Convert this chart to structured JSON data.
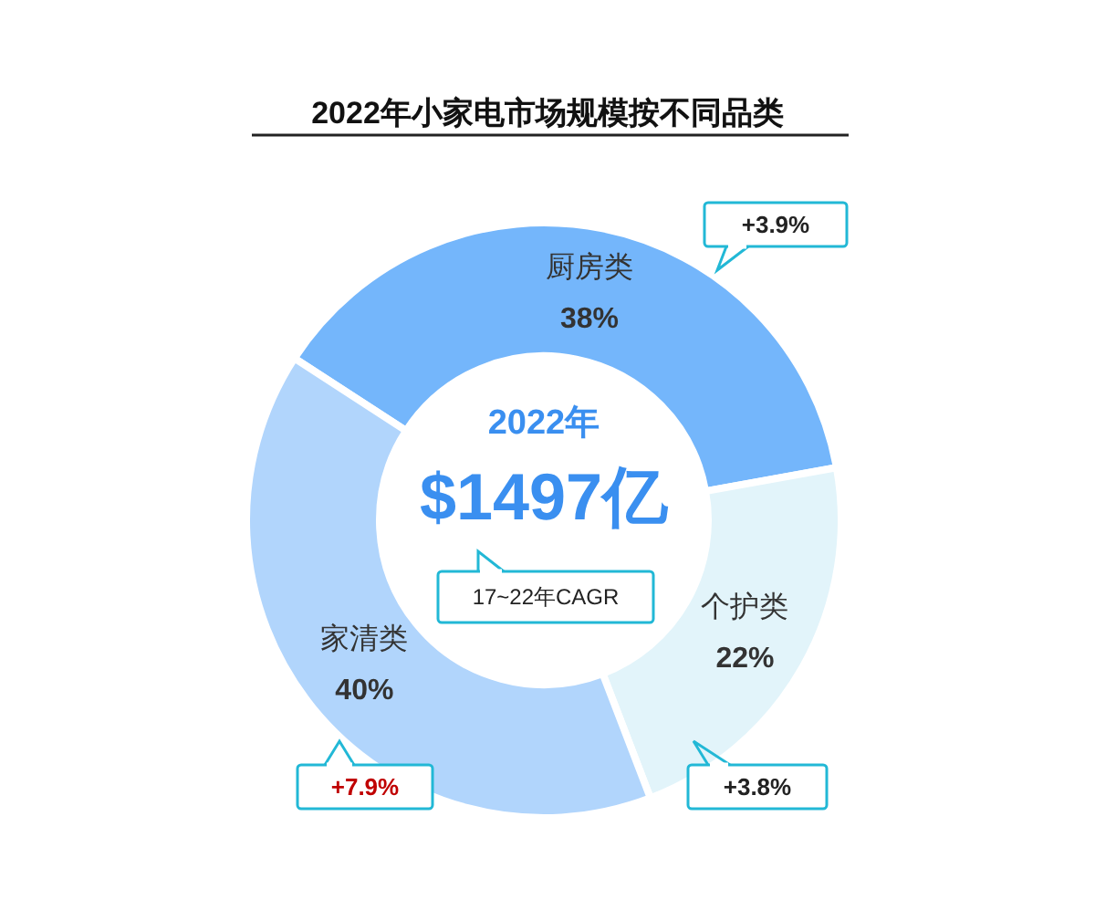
{
  "chart_data": {
    "type": "donut",
    "title": "2022年小家电市场规模按不同品类",
    "categories": [
      "厨房类",
      "个护类",
      "家清类"
    ],
    "values": [
      38,
      22,
      40
    ],
    "colors": [
      "#74b6fb",
      "#e2f4fa",
      "#b1d5fc"
    ],
    "value_labels": [
      "38%",
      "22%",
      "40%"
    ],
    "annotations": [
      "2022年",
      "$1497亿",
      "17~22年CAGR",
      "+3.9%",
      "+3.8%",
      "+7.9%"
    ]
  }
}
